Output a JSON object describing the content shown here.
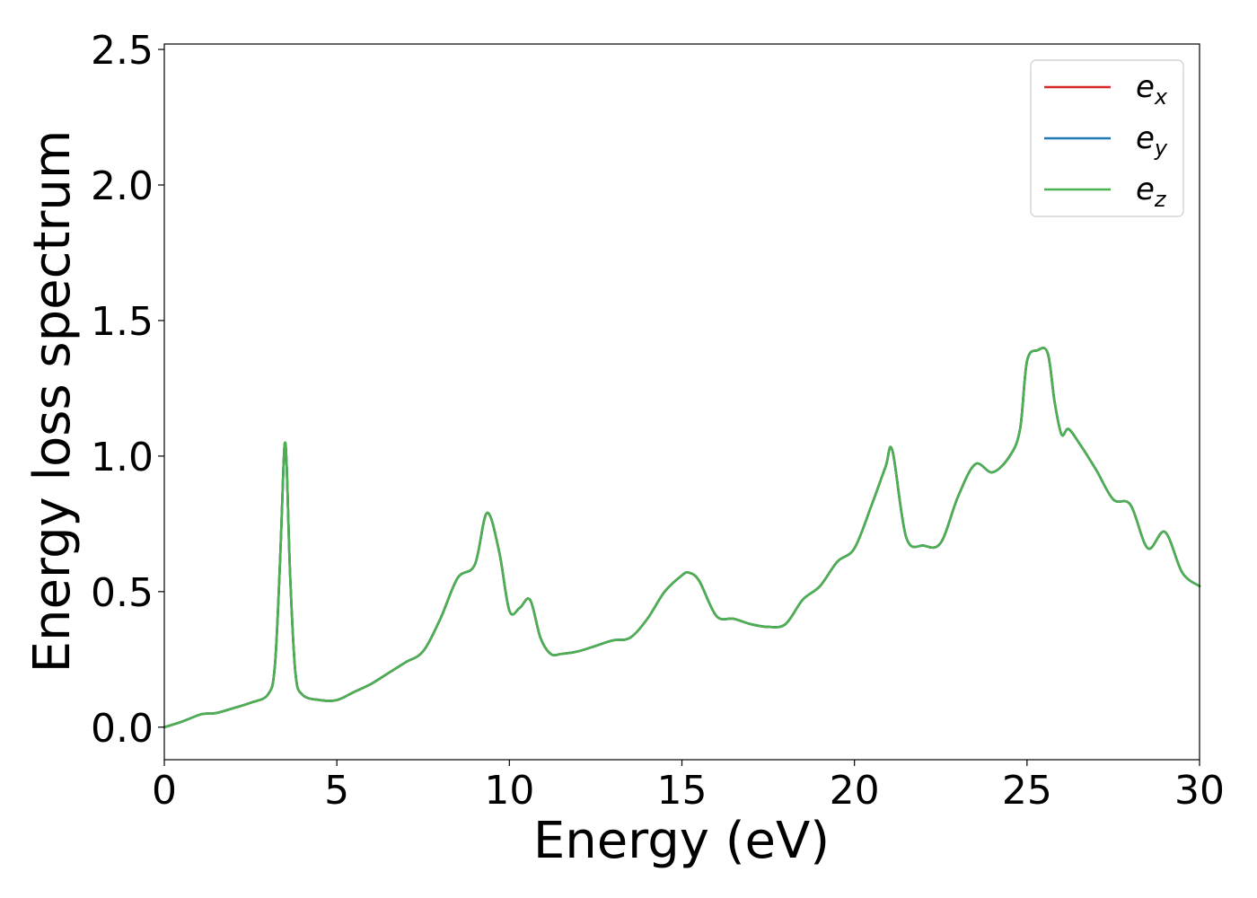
{
  "chart_data": {
    "type": "line",
    "title": "",
    "xlabel": "Energy (eV)",
    "ylabel": "Energy loss spectrum",
    "xlim": [
      0,
      30
    ],
    "ylim": [
      -0.12,
      2.52
    ],
    "xticks": [
      0,
      5,
      10,
      15,
      20,
      25,
      30
    ],
    "xtick_labels": [
      "0",
      "5",
      "10",
      "15",
      "20",
      "25",
      "30"
    ],
    "yticks": [
      0.0,
      0.5,
      1.0,
      1.5,
      2.0,
      2.5
    ],
    "ytick_labels": [
      "0.0",
      "0.5",
      "1.0",
      "1.5",
      "2.0",
      "2.5"
    ],
    "grid": false,
    "legend_position": "top-right",
    "x": [
      0,
      0.5,
      1.0,
      1.2,
      1.5,
      2.0,
      2.5,
      3.0,
      3.2,
      3.35,
      3.45,
      3.5,
      3.55,
      3.65,
      3.8,
      4.0,
      4.5,
      5.0,
      5.5,
      6.0,
      6.5,
      7.0,
      7.5,
      8.0,
      8.5,
      9.0,
      9.35,
      9.7,
      10.0,
      10.3,
      10.6,
      10.9,
      11.2,
      11.5,
      12.0,
      12.5,
      13.0,
      13.5,
      14.0,
      14.5,
      15.0,
      15.2,
      15.5,
      16.0,
      16.5,
      17.0,
      17.5,
      18.0,
      18.5,
      19.0,
      19.5,
      20.0,
      20.5,
      20.9,
      21.1,
      21.5,
      22.0,
      22.5,
      23.0,
      23.5,
      24.0,
      24.5,
      24.8,
      25.0,
      25.3,
      25.6,
      25.8,
      26.0,
      26.2,
      26.5,
      27.0,
      27.5,
      28.0,
      28.5,
      29.0,
      29.5,
      30.0
    ],
    "series": [
      {
        "name": "e_x",
        "label_base": "e",
        "label_sub": "x",
        "color": "#d62728",
        "values": [
          0.0,
          0.02,
          0.045,
          0.05,
          0.052,
          0.07,
          0.09,
          0.12,
          0.22,
          0.6,
          0.95,
          1.05,
          0.95,
          0.55,
          0.2,
          0.12,
          0.1,
          0.1,
          0.13,
          0.16,
          0.2,
          0.24,
          0.28,
          0.4,
          0.55,
          0.6,
          0.79,
          0.65,
          0.43,
          0.44,
          0.47,
          0.33,
          0.27,
          0.27,
          0.28,
          0.3,
          0.32,
          0.33,
          0.4,
          0.5,
          0.56,
          0.57,
          0.54,
          0.41,
          0.4,
          0.38,
          0.37,
          0.38,
          0.47,
          0.52,
          0.61,
          0.66,
          0.82,
          0.96,
          1.02,
          0.7,
          0.67,
          0.68,
          0.85,
          0.97,
          0.94,
          1.0,
          1.1,
          1.35,
          1.39,
          1.38,
          1.2,
          1.08,
          1.1,
          1.05,
          0.95,
          0.84,
          0.82,
          0.66,
          0.72,
          0.57,
          0.52
        ]
      },
      {
        "name": "e_y",
        "label_base": "e",
        "label_sub": "y",
        "color": "#1f77b4",
        "values": [
          0.0,
          0.02,
          0.045,
          0.05,
          0.052,
          0.07,
          0.09,
          0.12,
          0.22,
          0.6,
          0.95,
          1.05,
          0.95,
          0.55,
          0.2,
          0.12,
          0.1,
          0.1,
          0.13,
          0.16,
          0.2,
          0.24,
          0.28,
          0.4,
          0.55,
          0.6,
          0.79,
          0.65,
          0.43,
          0.44,
          0.47,
          0.33,
          0.27,
          0.27,
          0.28,
          0.3,
          0.32,
          0.33,
          0.4,
          0.5,
          0.56,
          0.57,
          0.54,
          0.41,
          0.4,
          0.38,
          0.37,
          0.38,
          0.47,
          0.52,
          0.61,
          0.66,
          0.82,
          0.96,
          1.02,
          0.7,
          0.67,
          0.68,
          0.85,
          0.97,
          0.94,
          1.0,
          1.1,
          1.35,
          1.39,
          1.38,
          1.2,
          1.08,
          1.1,
          1.05,
          0.95,
          0.84,
          0.82,
          0.66,
          0.72,
          0.57,
          0.52
        ]
      },
      {
        "name": "e_z",
        "label_base": "e",
        "label_sub": "z",
        "color": "#4caf50",
        "values": [
          0.0,
          0.02,
          0.045,
          0.05,
          0.052,
          0.07,
          0.09,
          0.12,
          0.22,
          0.6,
          0.95,
          1.05,
          0.95,
          0.55,
          0.2,
          0.12,
          0.1,
          0.1,
          0.13,
          0.16,
          0.2,
          0.24,
          0.28,
          0.4,
          0.55,
          0.6,
          0.79,
          0.65,
          0.43,
          0.44,
          0.47,
          0.33,
          0.27,
          0.27,
          0.28,
          0.3,
          0.32,
          0.33,
          0.4,
          0.5,
          0.56,
          0.57,
          0.54,
          0.41,
          0.4,
          0.38,
          0.37,
          0.38,
          0.47,
          0.52,
          0.61,
          0.66,
          0.82,
          0.96,
          1.02,
          0.7,
          0.67,
          0.68,
          0.85,
          0.97,
          0.94,
          1.0,
          1.1,
          1.35,
          1.39,
          1.38,
          1.2,
          1.08,
          1.1,
          1.05,
          0.95,
          0.84,
          0.82,
          0.66,
          0.72,
          0.57,
          0.52
        ]
      }
    ]
  }
}
